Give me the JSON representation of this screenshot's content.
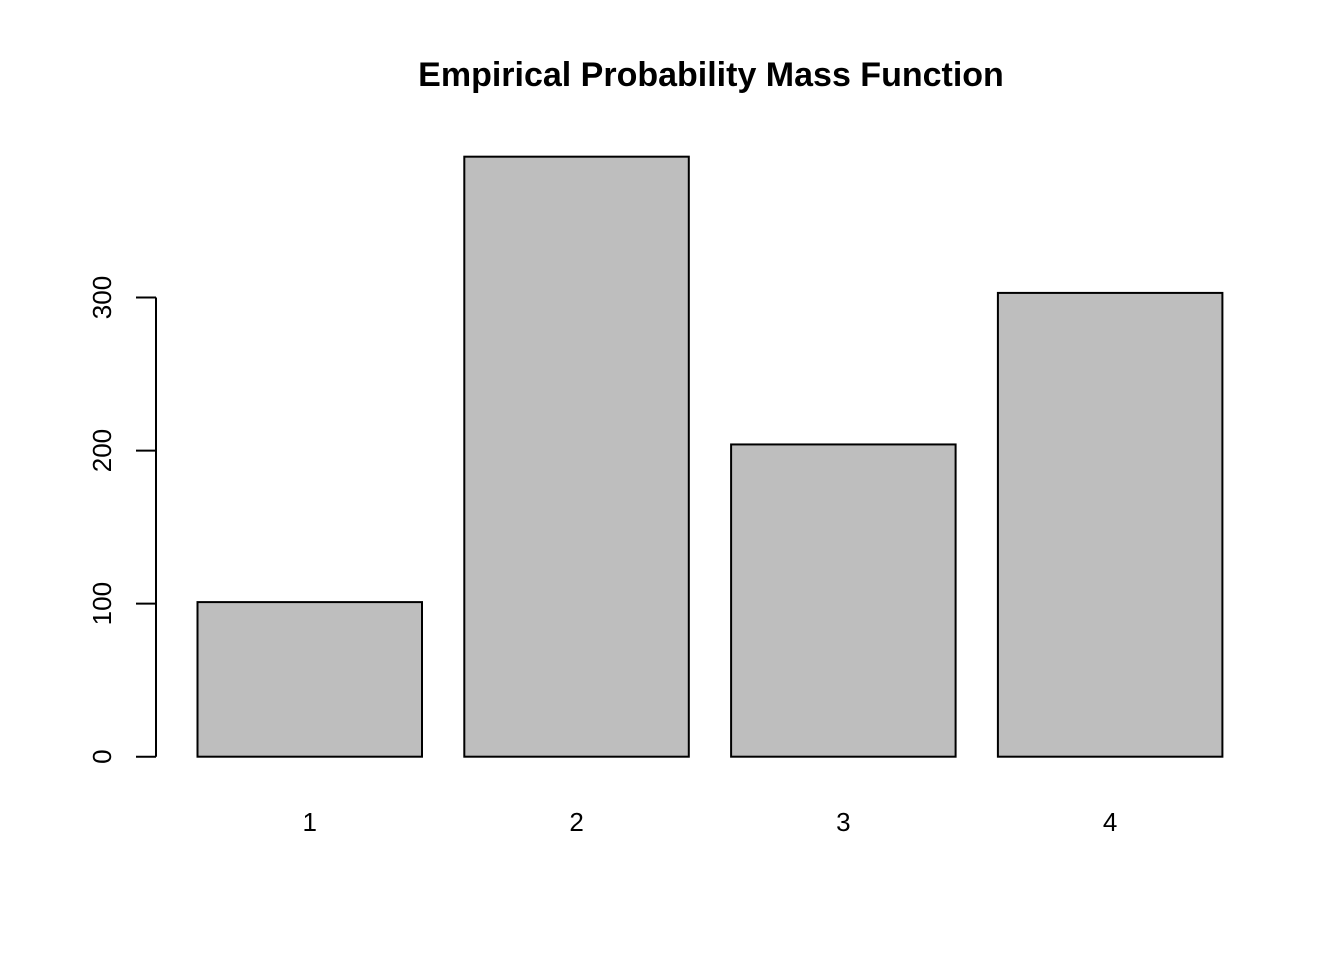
{
  "chart_data": {
    "type": "bar",
    "title": "Empirical Probability Mass Function",
    "categories": [
      "1",
      "2",
      "3",
      "4"
    ],
    "values": [
      101,
      392,
      204,
      303
    ],
    "xlabel": "",
    "ylabel": "",
    "y_ticks": [
      0,
      100,
      200,
      300
    ],
    "y_tick_labels": [
      "0",
      "100",
      "200",
      "300"
    ],
    "ylim": [
      0,
      395
    ],
    "grid": false,
    "legend_position": "none",
    "bar_fill_color": "#bebebe",
    "bar_border_color": "#000000",
    "axis_color": "#000000",
    "text_color": "#000000",
    "background_color": "#ffffff"
  }
}
